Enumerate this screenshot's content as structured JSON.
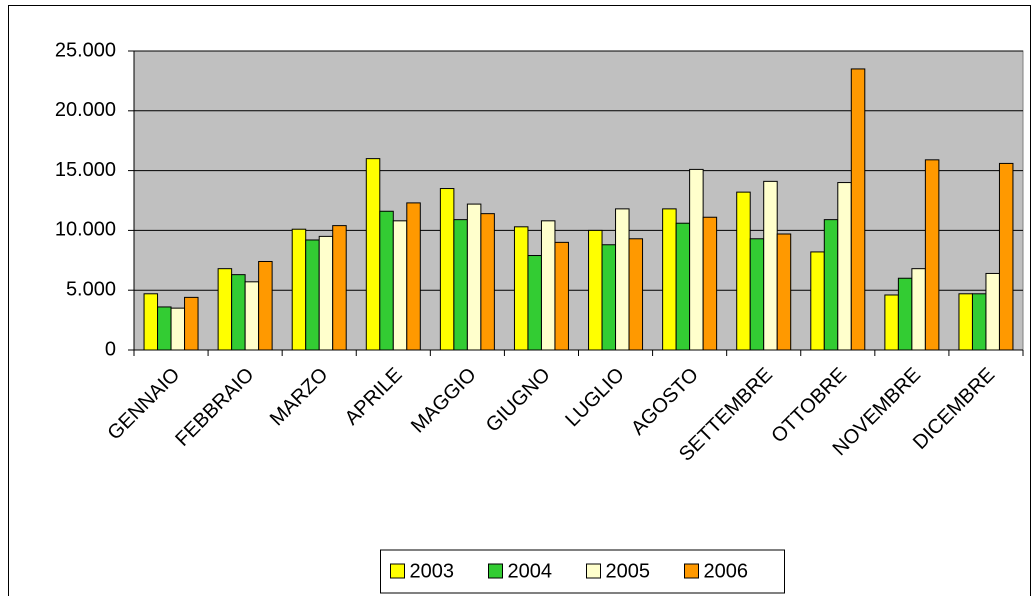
{
  "chart_data": {
    "type": "bar",
    "categories": [
      "GENNAIO",
      "FEBBRAIO",
      "MARZO",
      "APRILE",
      "MAGGIO",
      "GIUGNO",
      "LUGLIO",
      "AGOSTO",
      "SETTEMBRE",
      "OTTOBRE",
      "NOVEMBRE",
      "DICEMBRE"
    ],
    "series": [
      {
        "name": "2003",
        "color": "#ffff00",
        "values": [
          4700,
          6800,
          10100,
          16000,
          13500,
          10300,
          10000,
          11800,
          13200,
          8200,
          4600,
          4700
        ]
      },
      {
        "name": "2004",
        "color": "#33cc33",
        "values": [
          3600,
          6300,
          9200,
          11600,
          10900,
          7900,
          8800,
          10600,
          9300,
          10900,
          6000,
          4700
        ]
      },
      {
        "name": "2005",
        "color": "#ffffcc",
        "values": [
          3500,
          5700,
          9500,
          10800,
          12200,
          10800,
          11800,
          15100,
          14100,
          14000,
          6800,
          6400
        ]
      },
      {
        "name": "2006",
        "color": "#ff9900",
        "values": [
          4400,
          7400,
          10400,
          12300,
          11400,
          9000,
          9300,
          11100,
          9700,
          23500,
          15900,
          15600
        ]
      }
    ],
    "ylim": [
      0,
      25000
    ],
    "yticks": [
      0,
      {
        "value": 5000,
        "label": "5.000"
      },
      {
        "value": 10000,
        "label": "10.000"
      },
      {
        "value": 15000,
        "label": "15.000"
      },
      {
        "value": 20000,
        "label": "20.000"
      },
      {
        "value": 25000,
        "label": "25.000"
      }
    ],
    "grid": true,
    "legend": "bottom"
  }
}
